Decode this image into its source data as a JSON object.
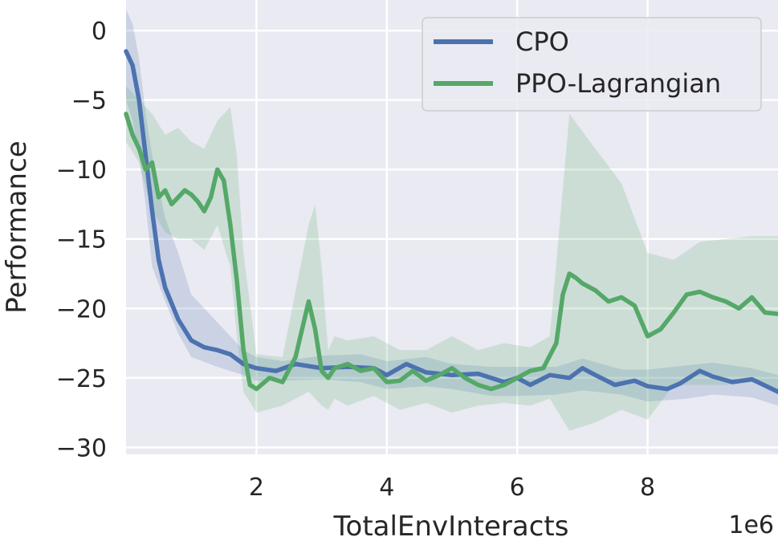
{
  "chart_data": {
    "type": "line",
    "title": "",
    "xlabel": "TotalEnvInteracts",
    "ylabel": "Performance",
    "x_offset_text": "1e6",
    "xlim": [
      0.0,
      10.0
    ],
    "ylim": [
      -30.5,
      2.2
    ],
    "xticks": [
      2,
      4,
      6,
      8
    ],
    "xtick_labels": [
      "2",
      "4",
      "6",
      "8"
    ],
    "yticks": [
      0,
      -5,
      -10,
      -15,
      -20,
      -25,
      -30
    ],
    "ytick_labels": [
      "0",
      "−5",
      "−10",
      "−15",
      "−20",
      "−25",
      "−30"
    ],
    "grid": true,
    "legend_position": "top-right",
    "colors": {
      "background": "#eaeaf2",
      "grid": "#ffffff",
      "cpo": "#4c72b0",
      "ppo": "#55a868"
    },
    "series": [
      {
        "name": "CPO",
        "color": "#4c72b0",
        "x": [
          0.0,
          0.1,
          0.2,
          0.3,
          0.4,
          0.5,
          0.6,
          0.8,
          1.0,
          1.2,
          1.4,
          1.6,
          1.8,
          2.0,
          2.3,
          2.6,
          3.0,
          3.4,
          3.8,
          4.0,
          4.3,
          4.6,
          5.0,
          5.4,
          5.8,
          6.0,
          6.2,
          6.5,
          6.8,
          7.0,
          7.2,
          7.5,
          7.8,
          8.0,
          8.3,
          8.5,
          8.8,
          9.0,
          9.3,
          9.6,
          10.0
        ],
        "y": [
          -1.5,
          -2.5,
          -5,
          -9,
          -13,
          -16.5,
          -18.5,
          -20.8,
          -22.3,
          -22.8,
          -23,
          -23.3,
          -24,
          -24.3,
          -24.5,
          -24,
          -24.3,
          -24.2,
          -24.3,
          -24.8,
          -24,
          -24.6,
          -24.8,
          -24.7,
          -25.3,
          -25,
          -25.5,
          -24.8,
          -25,
          -24.3,
          -24.8,
          -25.5,
          -25.2,
          -25.6,
          -25.8,
          -25.4,
          -24.5,
          -24.9,
          -25.3,
          -25.1,
          -26
        ]
      },
      {
        "name": "PPO-Lagrangian",
        "color": "#55a868",
        "x": [
          0.0,
          0.1,
          0.2,
          0.3,
          0.4,
          0.5,
          0.6,
          0.7,
          0.8,
          0.9,
          1.0,
          1.1,
          1.2,
          1.3,
          1.4,
          1.5,
          1.6,
          1.7,
          1.8,
          1.9,
          2.0,
          2.2,
          2.4,
          2.6,
          2.8,
          2.9,
          3.0,
          3.1,
          3.2,
          3.4,
          3.6,
          3.8,
          4.0,
          4.2,
          4.4,
          4.6,
          4.8,
          5.0,
          5.2,
          5.4,
          5.6,
          5.8,
          6.0,
          6.2,
          6.4,
          6.6,
          6.7,
          6.8,
          6.9,
          7.0,
          7.2,
          7.4,
          7.6,
          7.8,
          8.0,
          8.2,
          8.4,
          8.6,
          8.8,
          9.0,
          9.2,
          9.4,
          9.6,
          9.8,
          10.0
        ],
        "y": [
          -6,
          -7.5,
          -8.5,
          -10,
          -9.5,
          -12,
          -11.5,
          -12.5,
          -12,
          -11.5,
          -11.8,
          -12.3,
          -13,
          -12,
          -10,
          -10.8,
          -14,
          -18,
          -23,
          -25.5,
          -25.8,
          -25,
          -25.3,
          -23.5,
          -19.5,
          -21.5,
          -24.5,
          -25,
          -24.3,
          -24,
          -24.5,
          -24.3,
          -25.3,
          -25.2,
          -24.5,
          -25.2,
          -24.8,
          -24.3,
          -25,
          -25.5,
          -25.8,
          -25.5,
          -25,
          -24.5,
          -24.3,
          -22.5,
          -19,
          -17.5,
          -17.8,
          -18.2,
          -18.7,
          -19.5,
          -19.2,
          -19.8,
          -22,
          -21.5,
          -20.3,
          -19,
          -18.8,
          -19.2,
          -19.5,
          -20,
          -19.2,
          -20.3,
          -20.4
        ]
      }
    ],
    "bands": [
      {
        "series": "CPO",
        "x": [
          0.0,
          0.1,
          0.2,
          0.3,
          0.4,
          0.6,
          0.8,
          1.0,
          1.4,
          1.8,
          2.0,
          2.4,
          3.0,
          3.6,
          4.0,
          4.6,
          5.0,
          5.6,
          6.0,
          6.6,
          7.0,
          7.6,
          8.0,
          8.6,
          9.0,
          9.6,
          10.0
        ],
        "upper": [
          1.5,
          0.5,
          -2,
          -6,
          -9,
          -13.5,
          -16,
          -19,
          -21,
          -23,
          -23.5,
          -23.8,
          -23.4,
          -23.3,
          -23.8,
          -23.5,
          -24,
          -24.2,
          -24.2,
          -24.2,
          -23.6,
          -24.4,
          -24.4,
          -24.1,
          -23.9,
          -24.3,
          -24.8
        ],
        "lower": [
          -5,
          -6.5,
          -9,
          -12.5,
          -17,
          -19.5,
          -21.8,
          -23.5,
          -24.2,
          -24.8,
          -25.2,
          -25.2,
          -25.1,
          -25.3,
          -25.8,
          -25.6,
          -25.8,
          -26.3,
          -26.3,
          -26.2,
          -25.9,
          -26.2,
          -26.7,
          -26.5,
          -26.2,
          -26.4,
          -27
        ]
      },
      {
        "series": "PPO-Lagrangian",
        "x": [
          0.0,
          0.2,
          0.4,
          0.6,
          0.8,
          1.0,
          1.2,
          1.4,
          1.6,
          1.7,
          1.8,
          2.0,
          2.4,
          2.8,
          2.9,
          3.0,
          3.1,
          3.2,
          3.4,
          3.8,
          4.2,
          4.6,
          5.0,
          5.4,
          5.8,
          6.2,
          6.5,
          6.8,
          7.2,
          7.6,
          8.0,
          8.4,
          8.8,
          9.2,
          9.6,
          10.0
        ],
        "upper": [
          -4,
          -5,
          -6,
          -7.5,
          -7,
          -8,
          -8.5,
          -6.5,
          -5.5,
          -9,
          -16,
          -23.3,
          -23.5,
          -14,
          -12.5,
          -17,
          -23,
          -22,
          -22.3,
          -22,
          -23,
          -23,
          -22,
          -23,
          -22.5,
          -22.8,
          -22,
          -6,
          -8.5,
          -11,
          -16,
          -16.5,
          -15.2,
          -15,
          -14.8,
          -14.8
        ],
        "lower": [
          -8,
          -9.5,
          -13,
          -14.5,
          -15,
          -15,
          -15.8,
          -14,
          -17,
          -22,
          -26,
          -27.5,
          -27,
          -26,
          -26.5,
          -27,
          -27.3,
          -26.5,
          -27,
          -26.3,
          -27.3,
          -26.8,
          -27.5,
          -27,
          -26.8,
          -27,
          -26.5,
          -28.8,
          -28.2,
          -27.3,
          -28,
          -25.5,
          -25.5,
          -25.5,
          -25.3,
          -26
        ]
      }
    ]
  }
}
